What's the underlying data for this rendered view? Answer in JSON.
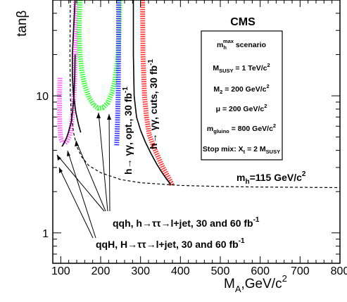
{
  "chart_data": {
    "type": "line",
    "title": "",
    "xlabel": "M",
    "xlabel_sub": "A",
    "xlabel_tail": ",GeV/c",
    "xlabel_sup": "2",
    "ylabel": "tanβ",
    "xlim": [
      80,
      800
    ],
    "ylim": [
      0.6,
      50
    ],
    "yscale": "log",
    "xticks": [
      100,
      200,
      300,
      400,
      500,
      600,
      700,
      800
    ],
    "xtick_labels": [
      "100",
      "200",
      "300",
      "400",
      "500",
      "600",
      "700",
      "800"
    ],
    "yticks": [
      1,
      10
    ],
    "ytick_labels": [
      "1",
      "10"
    ],
    "grid": false,
    "series": [
      {
        "color": "#ff66ff",
        "style": "hatched",
        "x": [
          98,
          97,
          97,
          98,
          100,
          104,
          110,
          116,
          122,
          126,
          130,
          133,
          135,
          136,
          137
        ],
        "y": [
          13.5,
          10,
          7,
          5.8,
          4.9,
          4.6,
          4.5,
          4.7,
          5.1,
          5.9,
          7.5,
          10,
          14,
          22,
          50
        ]
      },
      {
        "color": "#000000",
        "style": "solid",
        "x": [
          102,
          104,
          108,
          114,
          120,
          126,
          130,
          133,
          135,
          136
        ],
        "y": [
          4.3,
          4.3,
          4.5,
          4.9,
          5.5,
          6.4,
          7.8,
          10,
          14,
          20
        ]
      },
      {
        "color": "#33ff33",
        "style": "hatched",
        "x": [
          148,
          146,
          148,
          153,
          160,
          170,
          182,
          194,
          206,
          218,
          228,
          236,
          242,
          246,
          248
        ],
        "y": [
          50,
          30,
          20,
          15,
          12,
          9.8,
          8.6,
          8.1,
          8.2,
          8.9,
          10.5,
          13,
          18,
          28,
          50
        ]
      },
      {
        "color": "#000000",
        "style": "solid",
        "x": [
          136,
          132,
          129,
          129,
          132,
          138,
          145,
          150
        ],
        "y": [
          50,
          30,
          20,
          14,
          10,
          7.5,
          6.1,
          5.4
        ]
      },
      {
        "color": "#3333ff",
        "style": "hatched",
        "x": [
          245,
          245,
          244,
          242,
          240
        ],
        "y": [
          50,
          20,
          10,
          6,
          4.3
        ]
      },
      {
        "color": "#ff3333",
        "style": "hatched",
        "x": [
          305,
          306,
          310,
          315,
          322,
          332,
          344,
          356,
          368,
          376,
          380
        ],
        "y": [
          50,
          20,
          10,
          7,
          5.2,
          4.3,
          3.6,
          3.0,
          2.6,
          2.35,
          2.2
        ]
      },
      {
        "color": "#000000",
        "style": "solid",
        "x": [
          282,
          282,
          284,
          290,
          300,
          312,
          326,
          340,
          354,
          366,
          376
        ],
        "y": [
          50,
          20,
          10,
          7,
          5.6,
          4.6,
          3.8,
          3.2,
          2.75,
          2.45,
          2.25
        ]
      },
      {
        "name": "m_h=115 GeV/c^2",
        "color": "#000000",
        "style": "dashed",
        "x": [
          124,
          123,
          124,
          127,
          132,
          140,
          152,
          170,
          200,
          250,
          300,
          400,
          500,
          600,
          700,
          800
        ],
        "y": [
          50,
          20,
          10,
          7,
          5.4,
          4.3,
          3.6,
          3.1,
          2.75,
          2.45,
          2.32,
          2.22,
          2.18,
          2.16,
          2.15,
          2.14
        ]
      }
    ],
    "labels": {
      "cms": "CMS",
      "scenario_main": "m",
      "scenario_sub": "h",
      "scenario_sup": "max",
      "scenario_tail": " scenario",
      "msusy": "M",
      "msusy_sub": "SUSY",
      "msusy_tail": " = 1 TeV/c",
      "msusy_sup": "2",
      "m2": "M",
      "m2_sub": "2",
      "m2_tail": " = 200 GeV/c",
      "m2_sup": "2",
      "mu": "μ = 200 GeV/c",
      "mu_sup": "2",
      "mgluino": "m",
      "mgluino_sub": "gluino",
      "mgluino_tail": " = 800 GeV/c",
      "mgluino_sup": "2",
      "stop": "Stop mix: X",
      "stop_sub": "t",
      "stop_tail": " = 2 M",
      "stop_sub2": "SUSY",
      "mh_main": "m",
      "mh_sub": "h",
      "mh_tail": "=115 GeV/c",
      "mh_sup": "2",
      "gg_opt": "h→ γγ, opt., 30 fb",
      "gg_opt_sup": "-1",
      "gg_cuts": "h→ γγ, cuts, 30 fb",
      "gg_cuts_sup": "-1",
      "qqh": "qqh, h→ττ→l+jet, 30 and 60 fb",
      "qqh_sup": "-1",
      "qqH": "qqH, H→ττ→l+jet, 30 and 60 fb",
      "qqH_sup": "-1"
    }
  }
}
